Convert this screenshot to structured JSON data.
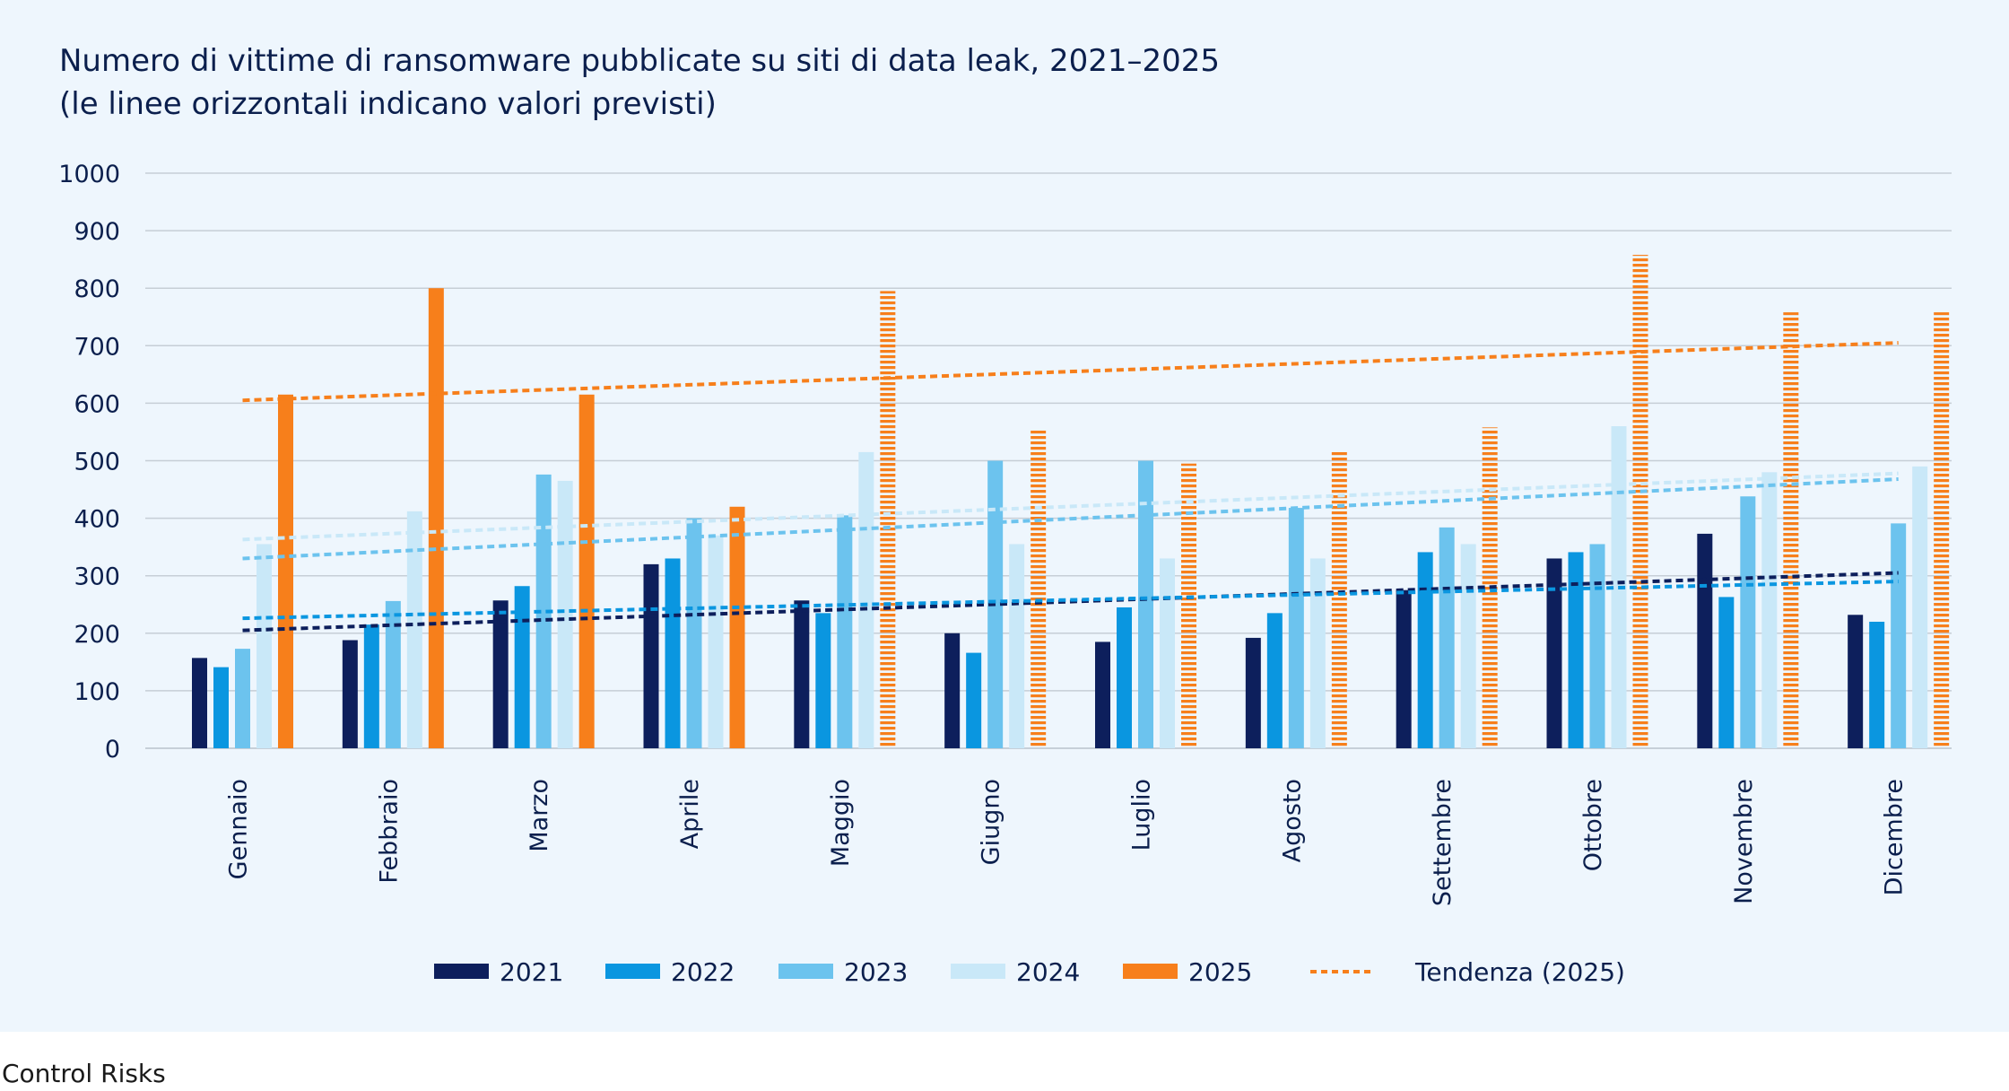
{
  "title_line1": "Numero di vittime di ransomware pubblicate su siti di data leak, 2021–2025",
  "title_line2": "(le linee orizzontali indicano valori previsti)",
  "source": "Control Risks",
  "chart_data": {
    "type": "bar",
    "categories": [
      "Gennaio",
      "Febbraio",
      "Marzo",
      "Aprile",
      "Maggio",
      "Giugno",
      "Luglio",
      "Agosto",
      "Settembre",
      "Ottobre",
      "Novembre",
      "Dicembre"
    ],
    "ylim": [
      0,
      1000
    ],
    "yticks": [
      0,
      100,
      200,
      300,
      400,
      500,
      600,
      700,
      800,
      900,
      1000
    ],
    "grid": true,
    "legend_position": "bottom",
    "series": [
      {
        "name": "2021",
        "color": "#0d1f5c",
        "values": [
          157,
          188,
          257,
          320,
          257,
          200,
          185,
          192,
          275,
          330,
          373,
          232
        ]
      },
      {
        "name": "2022",
        "color": "#0a96e0",
        "values": [
          141,
          215,
          282,
          330,
          235,
          166,
          245,
          235,
          341,
          341,
          263,
          220
        ]
      },
      {
        "name": "2023",
        "color": "#6cc3ee",
        "values": [
          173,
          256,
          476,
          400,
          405,
          500,
          500,
          418,
          384,
          355,
          438,
          391
        ]
      },
      {
        "name": "2024",
        "color": "#c9e8f8",
        "values": [
          355,
          412,
          465,
          370,
          515,
          355,
          330,
          330,
          355,
          560,
          480,
          490
        ]
      },
      {
        "name": "2025",
        "color": "#f77f1b",
        "values": [
          615,
          800,
          615,
          420,
          795,
          555,
          495,
          518,
          558,
          858,
          758,
          758
        ],
        "forecast_from_index": 4
      }
    ],
    "trendlines": [
      {
        "series": "2021",
        "color": "#0d1f5c",
        "start": 205,
        "end": 305
      },
      {
        "series": "2022",
        "color": "#0a96e0",
        "start": 226,
        "end": 290
      },
      {
        "series": "2023",
        "color": "#6cc3ee",
        "start": 330,
        "end": 468
      },
      {
        "series": "2024",
        "color": "#c9e8f8",
        "start": 363,
        "end": 478
      },
      {
        "series": "2025",
        "color": "#f77f1b",
        "start": 605,
        "end": 705
      }
    ],
    "trend_legend_label": "Tendenza (2025)"
  }
}
